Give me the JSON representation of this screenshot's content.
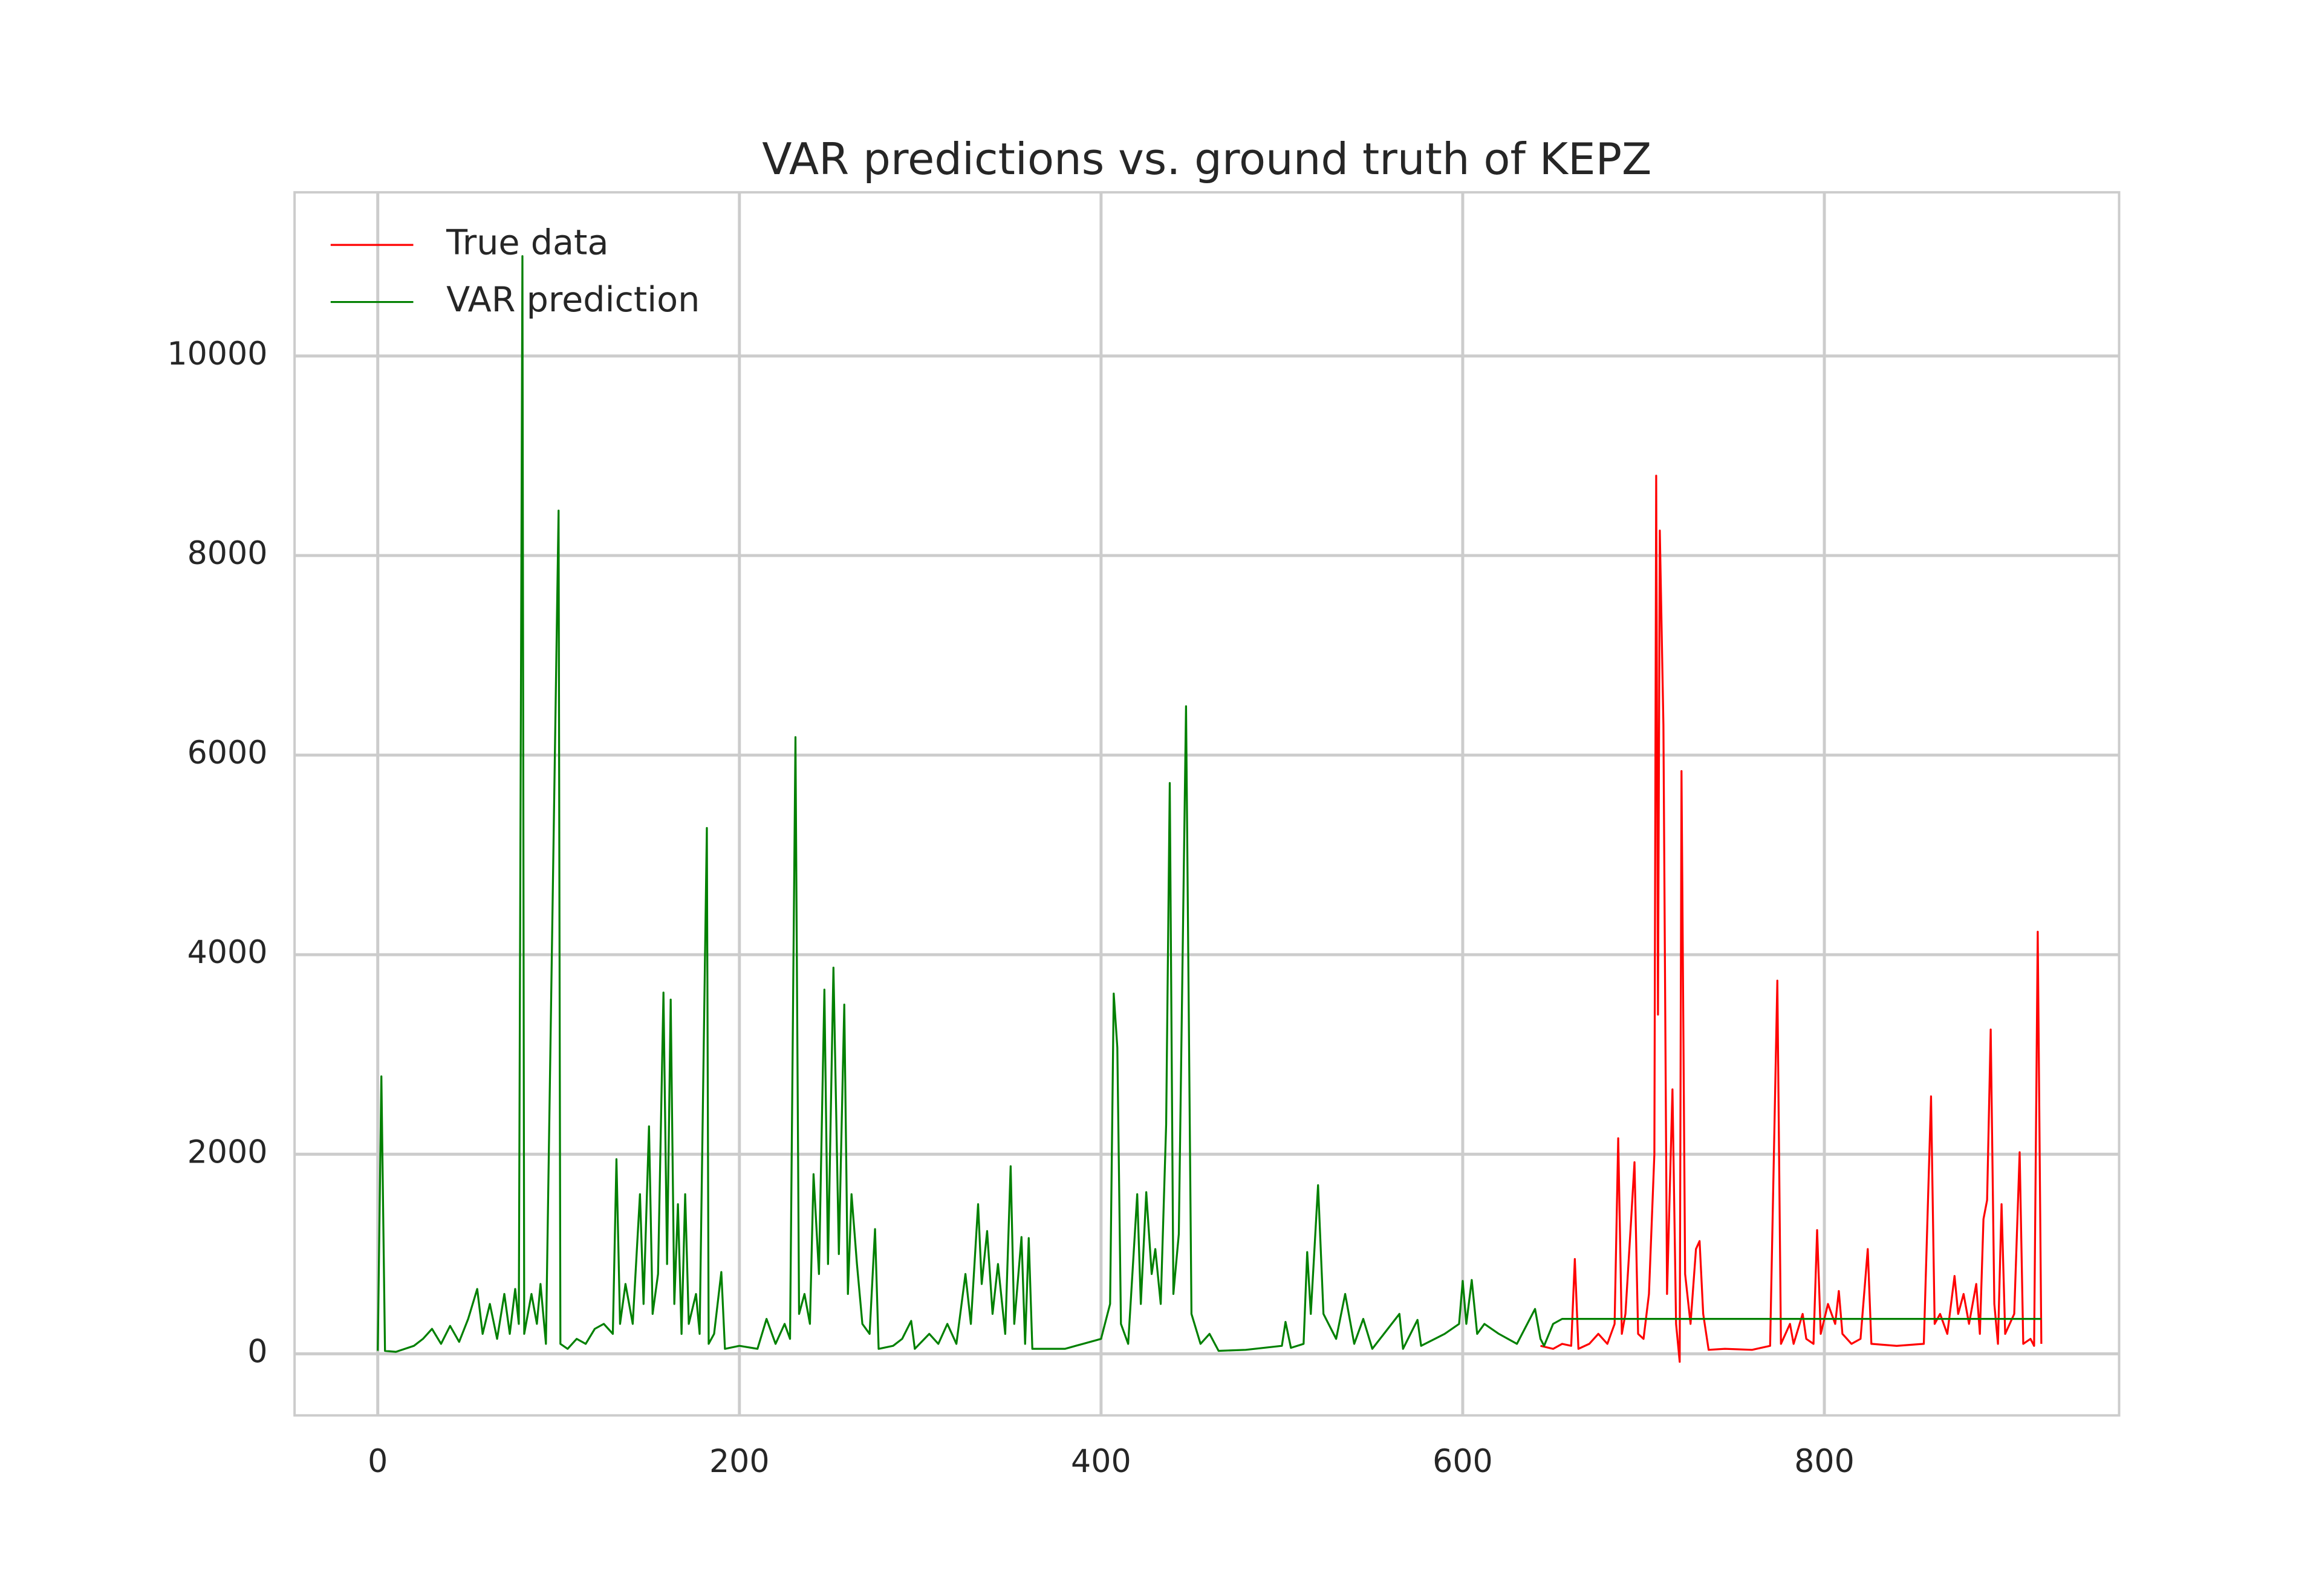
{
  "chart_data": {
    "type": "line",
    "title": "VAR predictions vs. ground truth of KEPZ",
    "xlim": [
      -46,
      963
    ],
    "xticks": [
      0,
      200,
      400,
      600,
      800
    ],
    "ylim": [
      -617,
      11640
    ],
    "yticks": [
      0,
      2000,
      4000,
      6000,
      8000,
      10000
    ],
    "grid": true,
    "legend": "upper left",
    "series": [
      {
        "name": "True data",
        "color": "#ff0000",
        "x": [
          643,
          650,
          655,
          660,
          662,
          664,
          670,
          675,
          680,
          684,
          686,
          688,
          690,
          693,
          695,
          697,
          700,
          703,
          706,
          707,
          708,
          709,
          711,
          713,
          716,
          718,
          720,
          721,
          723,
          726,
          729,
          731,
          733,
          736,
          745,
          760,
          770,
          774,
          776,
          781,
          783,
          788,
          790,
          794,
          796,
          798,
          802,
          806,
          808,
          810,
          815,
          820,
          824,
          826,
          840,
          855,
          859,
          861,
          864,
          868,
          872,
          874,
          877,
          880,
          884,
          886,
          888,
          890,
          892,
          894,
          896,
          898,
          900,
          905,
          908,
          910,
          914,
          916,
          918,
          920
        ],
        "values": [
          80,
          50,
          100,
          80,
          950,
          50,
          100,
          200,
          100,
          300,
          2160,
          200,
          400,
          1300,
          1920,
          200,
          150,
          600,
          2000,
          8800,
          3400,
          8250,
          6300,
          600,
          2650,
          300,
          -80,
          5840,
          800,
          300,
          1050,
          1130,
          400,
          40,
          50,
          40,
          80,
          3740,
          100,
          300,
          100,
          400,
          150,
          100,
          1240,
          200,
          500,
          300,
          630,
          200,
          100,
          150,
          1050,
          100,
          80,
          100,
          2580,
          300,
          400,
          200,
          780,
          400,
          600,
          300,
          700,
          200,
          1350,
          1540,
          3250,
          500,
          100,
          1500,
          200,
          400,
          2020,
          100,
          150,
          80,
          4230,
          100
        ]
      },
      {
        "name": "VAR prediction",
        "color": "#008000",
        "x": [
          0,
          2,
          4,
          10,
          20,
          25,
          30,
          35,
          40,
          45,
          50,
          55,
          58,
          62,
          66,
          70,
          73,
          76,
          78,
          80,
          81,
          85,
          88,
          90,
          93,
          100,
          101,
          105,
          110,
          115,
          120,
          125,
          130,
          132,
          134,
          137,
          141,
          145,
          147,
          150,
          152,
          155,
          158,
          160,
          162,
          164,
          166,
          168,
          170,
          172,
          176,
          178,
          182,
          183,
          186,
          190,
          192,
          200,
          210,
          215,
          220,
          225,
          228,
          231,
          233,
          236,
          239,
          241,
          244,
          247,
          249,
          252,
          255,
          258,
          260,
          262,
          265,
          268,
          272,
          275,
          277,
          285,
          290,
          295,
          297,
          305,
          310,
          315,
          320,
          325,
          328,
          332,
          334,
          337,
          340,
          343,
          347,
          350,
          352,
          356,
          358,
          360,
          362,
          380,
          390,
          400,
          405,
          407,
          409,
          411,
          415,
          420,
          422,
          425,
          428,
          430,
          433,
          436,
          438,
          440,
          443,
          447,
          450,
          455,
          460,
          465,
          480,
          500,
          502,
          505,
          512,
          514,
          516,
          520,
          523,
          530,
          535,
          540,
          545,
          550,
          565,
          567,
          575,
          577,
          590,
          598,
          600,
          602,
          605,
          608,
          612,
          620,
          630,
          640,
          643,
          645,
          650,
          655,
          920
        ],
        "values": [
          30,
          2780,
          30,
          20,
          80,
          150,
          250,
          100,
          280,
          120,
          350,
          650,
          200,
          500,
          150,
          600,
          200,
          650,
          300,
          11000,
          200,
          600,
          300,
          700,
          100,
          8450,
          100,
          50,
          150,
          100,
          250,
          300,
          200,
          1950,
          300,
          700,
          300,
          1600,
          500,
          2280,
          400,
          800,
          3620,
          900,
          3550,
          500,
          1500,
          200,
          1600,
          300,
          600,
          200,
          5270,
          100,
          200,
          820,
          50,
          80,
          50,
          350,
          100,
          300,
          150,
          6180,
          400,
          600,
          300,
          1800,
          800,
          3650,
          900,
          3870,
          1000,
          3500,
          600,
          1600,
          900,
          300,
          200,
          1250,
          50,
          80,
          150,
          330,
          50,
          200,
          100,
          300,
          100,
          800,
          300,
          1500,
          700,
          1230,
          400,
          900,
          200,
          1880,
          300,
          1170,
          100,
          1160,
          50,
          50,
          100,
          150,
          500,
          3610,
          3070,
          300,
          100,
          1600,
          500,
          1620,
          800,
          1050,
          500,
          2300,
          5720,
          600,
          1200,
          6490,
          400,
          100,
          200,
          30,
          40,
          80,
          320,
          60,
          100,
          1020,
          400,
          1690,
          400,
          150,
          600,
          100,
          350,
          50,
          400,
          50,
          340,
          80,
          200,
          300,
          730,
          300,
          740,
          200,
          300,
          200,
          100,
          450,
          150,
          80,
          300,
          350,
          350
        ]
      }
    ]
  }
}
